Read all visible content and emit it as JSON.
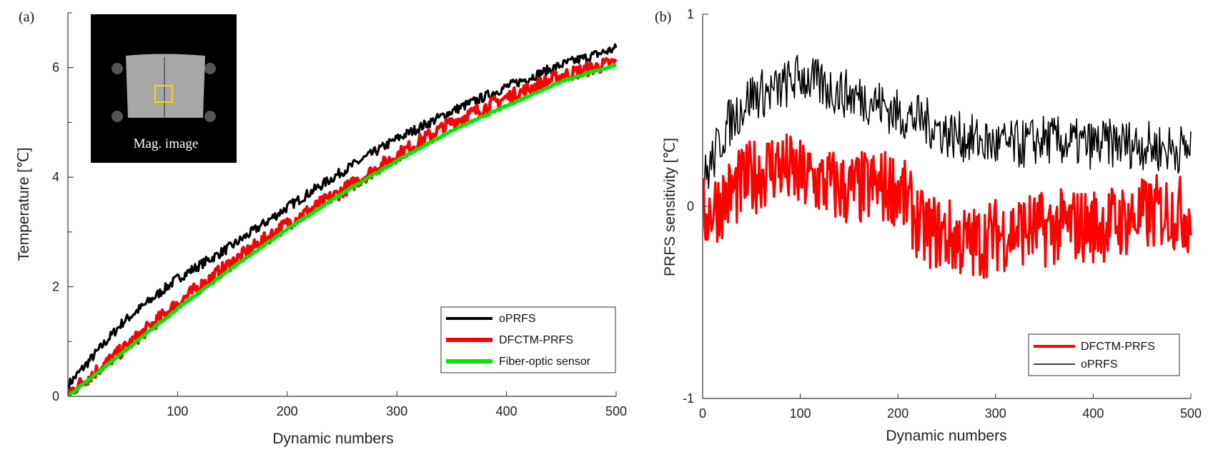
{
  "chart_data": [
    {
      "type": "line",
      "panel_label": "(a)",
      "xlabel": "Dynamic numbers",
      "ylabel": "Temperature [℃]",
      "xlim": [
        0,
        500
      ],
      "ylim": [
        0,
        7
      ],
      "xticks": [
        100,
        200,
        300,
        400,
        500
      ],
      "xtick_labels": [
        "100",
        "200",
        "300",
        "400",
        "500"
      ],
      "yticks": [
        0,
        2,
        4,
        6
      ],
      "ytick_labels": [
        "0",
        "2",
        "4",
        "6"
      ],
      "grid": false,
      "legend_position": "bottom-right",
      "inset": {
        "label": "Mag. image"
      },
      "series": [
        {
          "name": "oPRFS",
          "color": "#000000",
          "x": [
            0,
            50,
            100,
            150,
            200,
            250,
            300,
            350,
            400,
            450,
            500
          ],
          "y": [
            0.2,
            1.35,
            2.15,
            2.75,
            3.45,
            4.1,
            4.7,
            5.2,
            5.65,
            6.05,
            6.35
          ]
        },
        {
          "name": "DFCTM-PRFS",
          "color": "#ff0000",
          "x": [
            0,
            50,
            100,
            150,
            200,
            250,
            300,
            350,
            400,
            450,
            500
          ],
          "y": [
            0.05,
            0.85,
            1.7,
            2.45,
            3.15,
            3.75,
            4.4,
            5.0,
            5.45,
            5.85,
            6.1
          ]
        },
        {
          "name": "Fiber-optic sensor",
          "color": "#00e600",
          "x": [
            0,
            50,
            100,
            150,
            200,
            250,
            300,
            350,
            400,
            450,
            500
          ],
          "y": [
            0.0,
            0.8,
            1.6,
            2.35,
            3.05,
            3.7,
            4.3,
            4.85,
            5.3,
            5.75,
            6.05
          ]
        }
      ]
    },
    {
      "type": "line",
      "panel_label": "(b)",
      "xlabel": "Dynamic numbers",
      "ylabel": "PRFS sensitivity [℃]",
      "xlim": [
        0,
        500
      ],
      "ylim": [
        -1,
        1
      ],
      "xticks": [
        0,
        100,
        200,
        300,
        400,
        500
      ],
      "xtick_labels": [
        "0",
        "100",
        "200",
        "300",
        "400",
        "500"
      ],
      "yticks": [
        -1,
        0,
        1
      ],
      "ytick_labels": [
        "-1",
        "0",
        "1"
      ],
      "grid": false,
      "legend_position": "bottom-right",
      "series": [
        {
          "name": "DFCTM-PRFS",
          "color": "#ff0000",
          "x": [
            0,
            25,
            50,
            75,
            100,
            125,
            150,
            175,
            200,
            225,
            250,
            275,
            300,
            325,
            350,
            375,
            400,
            425,
            450,
            475,
            500
          ],
          "y": [
            -0.05,
            0.05,
            0.15,
            0.22,
            0.15,
            0.12,
            0.08,
            0.1,
            0.1,
            -0.12,
            -0.15,
            -0.2,
            -0.15,
            -0.12,
            -0.12,
            -0.1,
            -0.1,
            -0.08,
            -0.05,
            -0.02,
            -0.05
          ]
        },
        {
          "name": "oPRFS",
          "color": "#000000",
          "x": [
            0,
            25,
            50,
            75,
            100,
            125,
            150,
            175,
            200,
            225,
            250,
            275,
            300,
            325,
            350,
            375,
            400,
            425,
            450,
            475,
            500
          ],
          "y": [
            0.12,
            0.42,
            0.58,
            0.6,
            0.68,
            0.62,
            0.58,
            0.55,
            0.48,
            0.45,
            0.38,
            0.35,
            0.32,
            0.32,
            0.35,
            0.33,
            0.32,
            0.33,
            0.32,
            0.3,
            0.3
          ]
        }
      ]
    }
  ]
}
